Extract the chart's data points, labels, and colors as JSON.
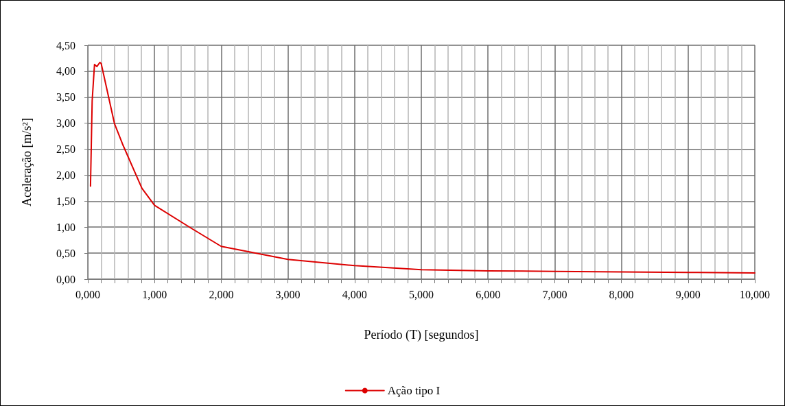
{
  "chart_data": {
    "type": "line",
    "xlabel": "Período (T) [segundos]",
    "ylabel": "Aceleração [m/s²]",
    "series": [
      {
        "name": "Ação tipo I",
        "color": "#dd0000",
        "x": [
          0.04,
          0.065,
          0.1,
          0.135,
          0.18,
          0.2,
          0.4,
          0.52,
          0.81,
          1.0,
          1.55,
          2.0,
          3.0,
          4.0,
          5.0,
          6.0,
          7.0,
          8.0,
          9.0,
          10.0
        ],
        "values": [
          1.79,
          3.43,
          4.13,
          4.09,
          4.17,
          4.15,
          2.99,
          2.6,
          1.75,
          1.42,
          0.98,
          0.63,
          0.38,
          0.26,
          0.18,
          0.16,
          0.15,
          0.14,
          0.13,
          0.12
        ]
      }
    ],
    "xlim": [
      0,
      10
    ],
    "ylim": [
      0,
      4.5
    ],
    "xticks": [
      {
        "value": 0,
        "label": "0,000"
      },
      {
        "value": 0.2,
        "label": null
      },
      {
        "value": 0.4,
        "label": null
      },
      {
        "value": 0.6,
        "label": null
      },
      {
        "value": 0.8,
        "label": null
      },
      {
        "value": 1,
        "label": "1,000"
      },
      {
        "value": 1.2,
        "label": null
      },
      {
        "value": 1.4,
        "label": null
      },
      {
        "value": 1.6,
        "label": null
      },
      {
        "value": 1.8,
        "label": null
      },
      {
        "value": 2,
        "label": "2,000"
      },
      {
        "value": 2.2,
        "label": null
      },
      {
        "value": 2.4,
        "label": null
      },
      {
        "value": 2.6,
        "label": null
      },
      {
        "value": 2.8,
        "label": null
      },
      {
        "value": 3,
        "label": "3,000"
      },
      {
        "value": 3.2,
        "label": null
      },
      {
        "value": 3.4,
        "label": null
      },
      {
        "value": 3.6,
        "label": null
      },
      {
        "value": 3.8,
        "label": null
      },
      {
        "value": 4,
        "label": "4,000"
      },
      {
        "value": 4.2,
        "label": null
      },
      {
        "value": 4.4,
        "label": null
      },
      {
        "value": 4.6,
        "label": null
      },
      {
        "value": 4.8,
        "label": null
      },
      {
        "value": 5,
        "label": "5,000"
      },
      {
        "value": 5.2,
        "label": null
      },
      {
        "value": 5.4,
        "label": null
      },
      {
        "value": 5.6,
        "label": null
      },
      {
        "value": 5.8,
        "label": null
      },
      {
        "value": 6,
        "label": "6,000"
      },
      {
        "value": 6.2,
        "label": null
      },
      {
        "value": 6.4,
        "label": null
      },
      {
        "value": 6.6,
        "label": null
      },
      {
        "value": 6.8,
        "label": null
      },
      {
        "value": 7,
        "label": "7,000"
      },
      {
        "value": 7.2,
        "label": null
      },
      {
        "value": 7.4,
        "label": null
      },
      {
        "value": 7.6,
        "label": null
      },
      {
        "value": 7.8,
        "label": null
      },
      {
        "value": 8,
        "label": "8,000"
      },
      {
        "value": 8.2,
        "label": null
      },
      {
        "value": 8.4,
        "label": null
      },
      {
        "value": 8.6,
        "label": null
      },
      {
        "value": 8.8,
        "label": null
      },
      {
        "value": 9,
        "label": "9,000"
      },
      {
        "value": 9.2,
        "label": null
      },
      {
        "value": 9.4,
        "label": null
      },
      {
        "value": 9.6,
        "label": null
      },
      {
        "value": 9.8,
        "label": null
      },
      {
        "value": 10,
        "label": "10,000"
      }
    ],
    "yticks": [
      {
        "value": 0,
        "label": "0,00"
      },
      {
        "value": 0.5,
        "label": "0,50"
      },
      {
        "value": 1,
        "label": "1,00"
      },
      {
        "value": 1.5,
        "label": "1,50"
      },
      {
        "value": 2,
        "label": "2,00"
      },
      {
        "value": 2.5,
        "label": "2,50"
      },
      {
        "value": 3,
        "label": "3,00"
      },
      {
        "value": 3.5,
        "label": "3,50"
      },
      {
        "value": 4,
        "label": "4,00"
      },
      {
        "value": 4.5,
        "label": "4,50"
      }
    ],
    "grid": true,
    "legend": "bottom",
    "marker": "none",
    "line_style": "solid"
  }
}
